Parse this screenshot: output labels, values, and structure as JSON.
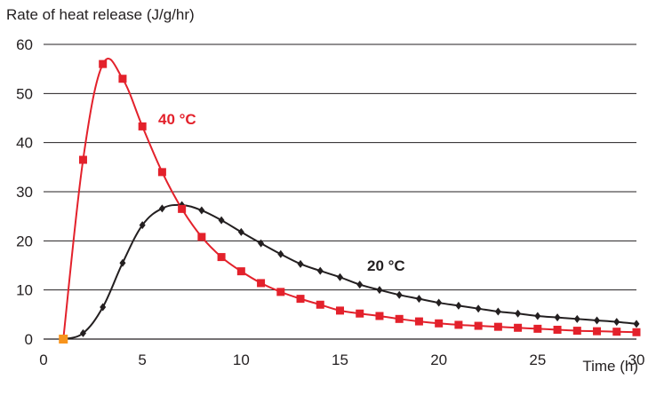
{
  "chart_data": {
    "type": "line",
    "title": "",
    "ylabel": "Rate of heat release (J/g/hr)",
    "xlabel": "Time (h)",
    "xlim": [
      0,
      30
    ],
    "ylim": [
      0,
      60
    ],
    "x_ticks": [
      0,
      5,
      10,
      15,
      20,
      25,
      30
    ],
    "x_tick_labels": [
      "0",
      "5",
      "10",
      "15",
      "20",
      "25",
      "30"
    ],
    "y_ticks": [
      0,
      10,
      20,
      30,
      40,
      50,
      60
    ],
    "y_tick_labels": [
      "0",
      "10",
      "20",
      "30",
      "40",
      "50",
      "60"
    ],
    "grid": "horizontal",
    "legend": "inline labels",
    "series": [
      {
        "name": "40 °C",
        "color": "#e3212b",
        "marker": "square",
        "x": [
          1,
          2,
          3,
          4,
          5,
          6,
          7,
          8,
          9,
          10,
          11,
          12,
          13,
          14,
          15,
          16,
          17,
          18,
          19,
          20,
          21,
          22,
          23,
          24,
          25,
          26,
          27,
          28,
          29,
          30
        ],
        "y": [
          0,
          36.5,
          56,
          53,
          43.3,
          34,
          26.5,
          20.8,
          16.7,
          13.8,
          11.4,
          9.6,
          8.2,
          7,
          5.8,
          5.2,
          4.7,
          4.1,
          3.6,
          3.2,
          2.9,
          2.7,
          2.5,
          2.3,
          2.1,
          1.9,
          1.7,
          1.6,
          1.5,
          1.4
        ]
      },
      {
        "name": "20 °C",
        "color": "#231f20",
        "marker": "diamond",
        "x": [
          2,
          3,
          4,
          5,
          6,
          7,
          8,
          9,
          10,
          11,
          12,
          13,
          14,
          15,
          16,
          17,
          18,
          19,
          20,
          21,
          22,
          23,
          24,
          25,
          26,
          27,
          28,
          29,
          30
        ],
        "y": [
          1.2,
          6.5,
          15.5,
          23.2,
          26.6,
          27.3,
          26.2,
          24.2,
          21.8,
          19.5,
          17.3,
          15.3,
          13.9,
          12.6,
          11.1,
          10,
          9,
          8.2,
          7.4,
          6.8,
          6.2,
          5.6,
          5.2,
          4.7,
          4.4,
          4.1,
          3.8,
          3.5,
          3.1
        ]
      }
    ],
    "start_point": {
      "x": 1,
      "y": 0,
      "color": "#f7941d"
    }
  }
}
